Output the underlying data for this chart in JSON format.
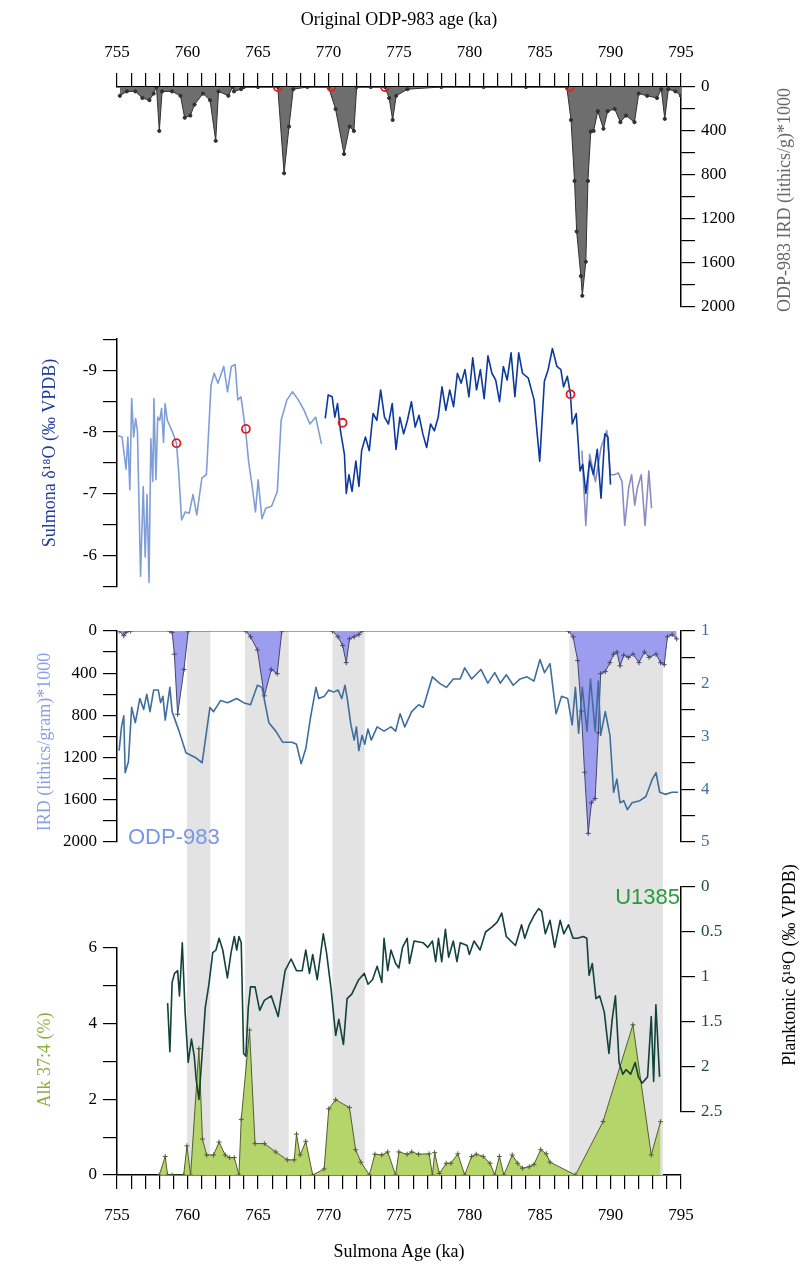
{
  "chart_data": [
    {
      "type": "area",
      "xlabel": "Original ODP-983 age (ka)",
      "ylabel": "ODP-983 IRD (lithics/g)*1000",
      "xlim": [
        755,
        795
      ],
      "xticks": [
        755,
        {
          "value": 756,
          "label": null
        },
        {
          "value": 757,
          "label": null
        },
        {
          "value": 758,
          "label": null
        },
        {
          "value": 759,
          "label": null
        },
        760,
        {
          "value": 761,
          "label": null
        },
        {
          "value": 762,
          "label": null
        },
        {
          "value": 763,
          "label": null
        },
        {
          "value": 764,
          "label": null
        },
        765,
        {
          "value": 766,
          "label": null
        },
        {
          "value": 767,
          "label": null
        },
        {
          "value": 768,
          "label": null
        },
        {
          "value": 769,
          "label": null
        },
        770,
        {
          "value": 771,
          "label": null
        },
        {
          "value": 772,
          "label": null
        },
        {
          "value": 773,
          "label": null
        },
        {
          "value": 774,
          "label": null
        },
        775,
        {
          "value": 776,
          "label": null
        },
        {
          "value": 777,
          "label": null
        },
        {
          "value": 778,
          "label": null
        },
        {
          "value": 779,
          "label": null
        },
        780,
        {
          "value": 781,
          "label": null
        },
        {
          "value": 782,
          "label": null
        },
        {
          "value": 783,
          "label": null
        },
        {
          "value": 784,
          "label": null
        },
        785,
        {
          "value": 786,
          "label": null
        },
        {
          "value": 787,
          "label": null
        },
        {
          "value": 788,
          "label": null
        },
        {
          "value": 789,
          "label": null
        },
        790,
        {
          "value": 791,
          "label": null
        },
        {
          "value": 792,
          "label": null
        },
        {
          "value": 793,
          "label": null
        },
        {
          "value": 794,
          "label": null
        },
        795
      ],
      "ylim": [
        2000,
        0
      ],
      "yticks": [
        0,
        {
          "value": 200,
          "label": null
        },
        400,
        {
          "value": 600,
          "label": null
        },
        800,
        {
          "value": 1000,
          "label": null
        },
        1200,
        {
          "value": 1400,
          "label": null
        },
        1600,
        {
          "value": 1800,
          "label": null
        },
        2000
      ],
      "series": [
        {
          "color": "#6e6e6e",
          "marker": "circle",
          "x": [
            755.2,
            755.7,
            756.3,
            756.8,
            757.3,
            757.6,
            757.8,
            758.0,
            758.2,
            758.9,
            759.5,
            759.8,
            760.2,
            760.5,
            761.1,
            761.6,
            762.0,
            762.2,
            762.9,
            763.2,
            763.3,
            763.8,
            764.0,
            765.0,
            766.4,
            766.85,
            767.2,
            767.5,
            768.5,
            770.0,
            770.5,
            771.1,
            771.5,
            771.8,
            772.0,
            773.0,
            774.0,
            774.3,
            774.55,
            774.8,
            775.6,
            778,
            781,
            784,
            786.9,
            787.2,
            787.45,
            787.6,
            787.9,
            788.0,
            788.25,
            788.4,
            788.6,
            788.8,
            789.1,
            789.5,
            789.8,
            790.3,
            790.7,
            791.1,
            791.7,
            792.0,
            792.6,
            793.3,
            793.6,
            793.85,
            794.1,
            794.6,
            795.0
          ],
          "values": [
            80,
            40,
            40,
            100,
            120,
            60,
            0,
            400,
            40,
            40,
            80,
            280,
            260,
            160,
            60,
            120,
            490,
            40,
            80,
            0,
            40,
            20,
            0,
            0,
            0,
            785,
            360,
            20,
            0,
            0,
            200,
            610,
            360,
            400,
            0,
            0,
            0,
            100,
            300,
            80,
            20,
            0,
            0,
            0,
            0,
            300,
            855,
            1315,
            1720,
            1900,
            1590,
            855,
            405,
            400,
            220,
            380,
            220,
            200,
            320,
            260,
            320,
            60,
            80,
            100,
            20,
            290,
            20,
            40,
            80
          ]
        },
        {
          "type": "scatter",
          "color": "#e02020",
          "marker": "circle",
          "x": [
            766.4,
            770.2,
            774.0,
            787.1
          ],
          "values": [
            0,
            0,
            0,
            0
          ]
        }
      ]
    },
    {
      "type": "line",
      "ylabel": "Sulmona δ¹⁸O (‰ VPDB)",
      "xlim": [
        755,
        795
      ],
      "tick_labels": "y",
      "ylim": [
        -5.5,
        -9.5
      ],
      "yticks": [
        {
          "value": -9.5,
          "label": null
        },
        -9,
        {
          "value": -8.5,
          "label": null
        },
        -8,
        {
          "value": -7.5,
          "label": null
        },
        -7,
        {
          "value": -6.5,
          "label": null
        },
        -6,
        {
          "value": -5.5,
          "label": null
        }
      ],
      "series": [
        {
          "color": "#7f9ed8",
          "x": [
            755.09,
            755.36,
            755.64,
            755.77,
            755.91,
            756.04,
            756.18,
            756.32,
            756.45,
            756.67,
            756.86,
            757.0,
            757.13,
            757.27,
            757.4,
            757.54,
            757.62,
            757.76,
            757.89,
            758.03,
            758.16,
            758.3,
            758.41,
            758.57,
            758.9,
            759.22,
            759.38,
            759.58,
            759.85,
            760.12,
            760.39,
            760.66,
            761.02,
            761.34,
            761.67,
            761.89,
            762.16,
            762.57,
            762.84,
            763.11,
            763.38,
            763.57,
            763.79,
            764.11,
            764.33,
            764.6,
            764.82,
            765.01,
            765.28,
            765.55,
            765.96,
            766.37,
            766.64,
            767.05,
            767.45,
            767.86,
            768.27,
            768.68,
            769.09,
            769.5
          ],
          "values": [
            -7.94,
            -7.92,
            -7.4,
            -7.92,
            -7.07,
            -8.54,
            -7.92,
            -8.22,
            -8.02,
            -5.67,
            -7.12,
            -5.98,
            -6.99,
            -5.57,
            -7.89,
            -7.2,
            -8.54,
            -7.23,
            -8.24,
            -8.19,
            -8.38,
            -7.83,
            -8.46,
            -8.19,
            -8.02,
            -7.82,
            -7.34,
            -6.58,
            -6.71,
            -6.69,
            -6.99,
            -6.66,
            -7.26,
            -7.31,
            -8.76,
            -8.95,
            -8.79,
            -9.06,
            -8.65,
            -9.06,
            -9.09,
            -8.52,
            -8.57,
            -8.05,
            -7.53,
            -7.1,
            -6.71,
            -7.23,
            -6.6,
            -6.77,
            -6.8,
            -7.04,
            -8.19,
            -8.52,
            -8.65,
            -8.52,
            -8.35,
            -8.13,
            -8.24,
            -7.81
          ]
        },
        {
          "color": "#8a8cc4",
          "x": [
            787.97,
            788.25,
            788.52,
            788.93,
            789.33,
            789.74,
            790.0,
            790.28,
            790.55,
            790.82,
            791.01,
            791.29,
            791.5,
            791.72,
            791.91,
            792.18,
            792.45,
            792.72,
            792.91
          ],
          "values": [
            -7.7,
            -6.49,
            -7.64,
            -7.2,
            -7.75,
            -8.02,
            -7.31,
            -7.31,
            -7.34,
            -7.2,
            -6.49,
            -7.1,
            -7.31,
            -6.82,
            -7.1,
            -7.31,
            -6.49,
            -7.37,
            -6.77
          ]
        },
        {
          "color": "#0b3a9c",
          "x": [
            769.77,
            769.98,
            770.26,
            770.45,
            770.64,
            770.85,
            771.13,
            771.26,
            771.45,
            771.67,
            771.94,
            772.16,
            772.35,
            772.62,
            772.89,
            773.16,
            773.43,
            773.7,
            773.97,
            774.25,
            774.52,
            774.79,
            775.06,
            775.33,
            775.6,
            775.88,
            776.15,
            776.42,
            776.69,
            776.96,
            777.24,
            777.51,
            777.78,
            778.05,
            778.32,
            778.6,
            778.87,
            779.14,
            779.41,
            779.68,
            779.96,
            780.23,
            780.5,
            780.77,
            781.04,
            781.31,
            781.59,
            781.86,
            782.13,
            782.4,
            782.67,
            782.95,
            783.22,
            783.49,
            783.76,
            784.17,
            784.58,
            784.98,
            785.31,
            785.58,
            785.88,
            786.2,
            786.48,
            786.67,
            786.94,
            787.16,
            787.29,
            787.57,
            787.84,
            788.03,
            788.25,
            788.52,
            788.79,
            789.06,
            789.33,
            789.6,
            789.82,
            790.0
          ],
          "values": [
            -8.22,
            -8.6,
            -8.57,
            -8.24,
            -8.46,
            -8.02,
            -7.64,
            -7.01,
            -7.31,
            -7.04,
            -7.53,
            -7.12,
            -7.7,
            -7.92,
            -7.7,
            -8.3,
            -8.19,
            -8.68,
            -8.24,
            -8.13,
            -8.46,
            -7.72,
            -8.24,
            -7.97,
            -8.19,
            -8.49,
            -8.08,
            -8.27,
            -7.97,
            -7.75,
            -8.13,
            -8.02,
            -8.24,
            -8.73,
            -8.35,
            -8.68,
            -8.41,
            -8.95,
            -8.79,
            -9.01,
            -8.57,
            -9.2,
            -8.68,
            -9.01,
            -8.54,
            -9.23,
            -8.95,
            -8.84,
            -8.49,
            -9.06,
            -8.84,
            -9.28,
            -8.57,
            -9.28,
            -8.95,
            -8.87,
            -8.52,
            -7.53,
            -8.82,
            -9.01,
            -9.35,
            -9.06,
            -9.01,
            -8.73,
            -8.9,
            -8.61,
            -8.13,
            -8.3,
            -7.37,
            -7.48,
            -7.01,
            -7.53,
            -7.31,
            -7.72,
            -6.93,
            -7.97,
            -7.92,
            -7.15
          ]
        },
        {
          "type": "scatter",
          "color": "#e02020",
          "marker": "circle",
          "x": [
            759.22,
            764.14,
            771.0,
            787.16
          ],
          "values": [
            -7.82,
            -8.05,
            -8.15,
            -8.61
          ]
        }
      ]
    },
    {
      "type": "area",
      "ylabel": "IRD (lithics/gram)*1000",
      "xlim": [
        755,
        795
      ],
      "tick_labels": "y",
      "ylim": [
        2000,
        0
      ],
      "yticks": [
        0,
        {
          "value": 200,
          "label": null
        },
        400,
        {
          "value": 600,
          "label": null
        },
        800,
        {
          "value": 1000,
          "label": null
        },
        1200,
        {
          "value": 1400,
          "label": null
        },
        1600,
        {
          "value": 1800,
          "label": null
        },
        2000
      ],
      "y2lim": [
        5,
        1
      ],
      "y2ticks": [
        1,
        {
          "value": 1.5,
          "label": null
        },
        2,
        {
          "value": 2.5,
          "label": null
        },
        3,
        {
          "value": 3.5,
          "label": null
        },
        4,
        {
          "value": 4.5,
          "label": null
        },
        5
      ],
      "annotations": [
        "ODP-983"
      ],
      "bands": [
        {
          "axis": "x",
          "from": 759.96,
          "to": 761.62,
          "color": "#e3e3e3"
        },
        {
          "axis": "x",
          "from": 764.08,
          "to": 767.18,
          "color": "#e3e3e3"
        },
        {
          "axis": "x",
          "from": 770.28,
          "to": 772.57,
          "color": "#e3e3e3"
        },
        {
          "axis": "x",
          "from": 787.08,
          "to": 793.72,
          "color": "#e3e3e3"
        }
      ],
      "series": [
        {
          "color": "#9d9df0",
          "marker": "cross",
          "x": [
            755.15,
            755.48,
            755.64,
            755.97,
            758.75,
            758.91,
            759.07,
            759.3,
            759.75,
            760.05,
            764.14,
            764.47,
            764.96,
            765.45,
            765.94,
            766.36,
            766.69,
            770.28,
            770.67,
            771.0,
            771.26,
            771.49,
            771.82,
            772.15,
            772.37,
            787.02,
            787.35,
            787.67,
            787.93,
            788.16,
            788.42,
            788.65,
            788.91,
            789.14,
            789.3,
            789.63,
            789.96,
            790.22,
            790.45,
            790.68,
            790.94,
            791.27,
            791.6,
            792.02,
            792.41,
            792.74,
            793.23,
            793.55,
            793.81,
            794.04,
            794.37,
            794.69
          ],
          "values": [
            0,
            45,
            12,
            0,
            0,
            12,
            220,
            790,
            365,
            0,
            0,
            55,
            180,
            615,
            365,
            405,
            0,
            0,
            55,
            137,
            300,
            75,
            55,
            35,
            0,
            0,
            55,
            280,
            760,
            1340,
            1920,
            1630,
            1590,
            965,
            405,
            385,
            300,
            220,
            200,
            330,
            230,
            250,
            220,
            300,
            200,
            250,
            220,
            300,
            320,
            55,
            35,
            75
          ]
        },
        {
          "type": "line",
          "color": "#3f6e9e",
          "axis": "y2",
          "x": [
            755.15,
            755.32,
            755.48,
            755.58,
            755.81,
            756.04,
            756.3,
            756.62,
            756.89,
            757.11,
            757.34,
            757.6,
            757.93,
            758.09,
            758.26,
            758.42,
            758.75,
            758.91,
            759.4,
            759.89,
            760.55,
            761.04,
            761.59,
            761.85,
            762.34,
            762.84,
            763.49,
            763.98,
            764.47,
            764.96,
            765.28,
            765.77,
            766.26,
            766.75,
            767.41,
            767.73,
            768.06,
            768.39,
            768.72,
            769.11,
            769.31,
            769.7,
            770.02,
            770.35,
            770.68,
            770.94,
            771.17,
            771.33,
            771.59,
            771.82,
            771.98,
            772.15,
            772.38,
            772.57,
            772.8,
            773.03,
            773.45,
            773.94,
            774.43,
            774.76,
            775.08,
            775.41,
            775.9,
            776.39,
            776.72,
            777.37,
            777.86,
            778.36,
            778.85,
            779.34,
            779.66,
            780.15,
            780.81,
            781.3,
            781.79,
            782.18,
            782.61,
            783.1,
            783.59,
            784.08,
            784.57,
            785.0,
            785.32,
            785.71,
            786.14,
            786.53,
            786.96,
            787.28,
            787.51,
            787.74,
            788.0,
            788.33,
            788.58,
            788.91,
            789.14,
            789.3,
            789.63,
            789.96,
            790.22,
            790.45,
            790.68,
            790.94,
            791.2,
            791.53,
            792.08,
            792.51,
            792.97,
            793.23,
            793.49,
            793.88,
            794.37,
            794.79
          ],
          "values": [
            3.27,
            2.82,
            2.61,
            3.69,
            3.48,
            2.45,
            2.74,
            2.28,
            2.49,
            2.2,
            2.53,
            2.12,
            2.12,
            2.36,
            2.24,
            2.69,
            2.07,
            2.53,
            2.9,
            3.31,
            3.4,
            3.5,
            2.45,
            2.53,
            2.32,
            2.36,
            2.28,
            2.36,
            2.4,
            2.03,
            2.07,
            2.74,
            2.9,
            3.11,
            3.11,
            3.15,
            3.52,
            3.23,
            2.65,
            2.07,
            2.28,
            2.24,
            2.12,
            2.16,
            2.12,
            2.28,
            2.03,
            2.28,
            2.78,
            3.07,
            2.82,
            3.27,
            2.98,
            3.15,
            2.86,
            3.07,
            2.82,
            2.9,
            2.82,
            2.9,
            2.57,
            2.82,
            2.53,
            2.4,
            2.45,
            1.87,
            1.99,
            2.07,
            1.91,
            1.91,
            1.7,
            1.91,
            1.73,
            1.99,
            1.79,
            1.99,
            1.83,
            2.03,
            1.91,
            1.87,
            1.95,
            1.54,
            1.79,
            1.62,
            2.57,
            2.24,
            2.28,
            2.78,
            2.07,
            2.94,
            2.07,
            2.9,
            1.91,
            2.9,
            1.95,
            2.98,
            2.53,
            2.98,
            4.06,
            3.81,
            4.26,
            4.22,
            4.39,
            4.26,
            4.22,
            4.14,
            3.81,
            3.69,
            4.06,
            4.1,
            4.06,
            4.06
          ]
        }
      ]
    },
    {
      "type": "area",
      "xlabel": "Sulmona Age (ka)",
      "ylabel": "Alk 37:4 (%)",
      "y2label": "Planktonic δ¹⁸O (‰ VPDB)",
      "xlim": [
        755,
        795
      ],
      "xticks": [
        755,
        {
          "value": 756,
          "label": null
        },
        {
          "value": 757,
          "label": null
        },
        {
          "value": 758,
          "label": null
        },
        {
          "value": 759,
          "label": null
        },
        760,
        {
          "value": 761,
          "label": null
        },
        {
          "value": 762,
          "label": null
        },
        {
          "value": 763,
          "label": null
        },
        {
          "value": 764,
          "label": null
        },
        765,
        {
          "value": 766,
          "label": null
        },
        {
          "value": 767,
          "label": null
        },
        {
          "value": 768,
          "label": null
        },
        {
          "value": 769,
          "label": null
        },
        770,
        {
          "value": 771,
          "label": null
        },
        {
          "value": 772,
          "label": null
        },
        {
          "value": 773,
          "label": null
        },
        {
          "value": 774,
          "label": null
        },
        775,
        {
          "value": 776,
          "label": null
        },
        {
          "value": 777,
          "label": null
        },
        {
          "value": 778,
          "label": null
        },
        {
          "value": 779,
          "label": null
        },
        780,
        {
          "value": 781,
          "label": null
        },
        {
          "value": 782,
          "label": null
        },
        {
          "value": 783,
          "label": null
        },
        {
          "value": 784,
          "label": null
        },
        785,
        {
          "value": 786,
          "label": null
        },
        {
          "value": 787,
          "label": null
        },
        {
          "value": 788,
          "label": null
        },
        {
          "value": 789,
          "label": null
        },
        790,
        {
          "value": 791,
          "label": null
        },
        {
          "value": 792,
          "label": null
        },
        {
          "value": 793,
          "label": null
        },
        {
          "value": 794,
          "label": null
        },
        795
      ],
      "ylim": [
        0,
        6
      ],
      "yticks": [
        0,
        {
          "value": 1,
          "label": null
        },
        2,
        {
          "value": 3,
          "label": null
        },
        4,
        {
          "value": 5,
          "label": null
        },
        6
      ],
      "y2lim": [
        2.5,
        0
      ],
      "y2ticks": [
        0,
        0.5,
        1,
        1.5,
        2,
        2.5
      ],
      "annotations": [
        "U1385"
      ],
      "bands": [
        {
          "axis": "x",
          "from": 759.96,
          "to": 761.62,
          "color": "#e3e3e3"
        },
        {
          "axis": "x",
          "from": 764.08,
          "to": 767.18,
          "color": "#e3e3e3"
        },
        {
          "axis": "x",
          "from": 770.28,
          "to": 772.57,
          "color": "#e3e3e3"
        },
        {
          "axis": "x",
          "from": 787.08,
          "to": 793.72,
          "color": "#e3e3e3"
        }
      ],
      "series": [
        {
          "color": "#b5d56a",
          "marker": "cross",
          "x": [
            758.0,
            758.42,
            758.59,
            758.91,
            759.73,
            759.96,
            760.22,
            760.81,
            761.06,
            761.36,
            761.85,
            762.24,
            762.67,
            762.99,
            763.32,
            763.65,
            763.81,
            764.4,
            764.79,
            765.45,
            766.26,
            767.08,
            767.57,
            767.73,
            767.99,
            768.39,
            768.88,
            769.69,
            770.02,
            770.51,
            771.49,
            771.92,
            772.3,
            772.9,
            773.29,
            773.78,
            774.2,
            774.76,
            774.99,
            775.58,
            775.9,
            776.39,
            777.14,
            777.37,
            777.53,
            777.86,
            778.35,
            778.68,
            779.17,
            779.66,
            780.15,
            780.48,
            780.97,
            781.46,
            781.79,
            782.12,
            782.44,
            783.03,
            783.42,
            783.75,
            784.24,
            784.57,
            785.05,
            785.45,
            785.71,
            787.51,
            789.47,
            791.59,
            792.89,
            793.55
          ],
          "values": [
            0,
            0.49,
            0,
            0,
            0,
            0.77,
            0,
            3.34,
            0.95,
            0.53,
            0.53,
            0.87,
            0.53,
            0.46,
            0.46,
            0,
            1.47,
            3.83,
            0.83,
            0.83,
            0.61,
            0.4,
            0.4,
            1.08,
            0.53,
            0.89,
            0,
            0.16,
            1.75,
            1.99,
            1.78,
            0.67,
            0.34,
            0,
            0.55,
            0.53,
            0.61,
            0,
            0.61,
            0.55,
            0.61,
            0.55,
            0.56,
            0,
            0.59,
            0.04,
            0.31,
            0.31,
            0.56,
            0,
            0.49,
            0.55,
            0.49,
            0.31,
            0,
            0.49,
            0,
            0.53,
            0.31,
            0.18,
            0.22,
            0.28,
            0.67,
            0.56,
            0.34,
            0,
            1.41,
            3.97,
            0.53,
            1.41
          ]
        },
        {
          "type": "line",
          "color": "#12423a",
          "axis": "y2",
          "x": [
            758.59,
            758.75,
            758.91,
            759.08,
            759.3,
            759.43,
            759.63,
            759.83,
            760.05,
            760.28,
            760.48,
            760.61,
            760.81,
            761.04,
            761.26,
            761.52,
            761.79,
            762.02,
            762.24,
            762.5,
            762.83,
            763.09,
            763.32,
            763.49,
            763.65,
            763.81,
            763.98,
            764.14,
            764.31,
            764.47,
            764.79,
            765.12,
            765.45,
            765.94,
            766.43,
            766.92,
            767.35,
            767.73,
            768.13,
            768.39,
            768.65,
            768.88,
            769.2,
            769.63,
            769.86,
            770.18,
            770.51,
            770.73,
            771.06,
            771.32,
            771.65,
            772.14,
            772.54,
            772.8,
            773.12,
            773.45,
            773.78,
            773.94,
            774.2,
            774.43,
            774.76,
            774.99,
            775.25,
            775.58,
            775.74,
            776.07,
            776.72,
            777.05,
            777.37,
            777.6,
            777.8,
            778.03,
            778.29,
            778.52,
            778.85,
            779.11,
            779.34,
            779.83,
            779.99,
            780.32,
            780.75,
            781.14,
            781.63,
            781.96,
            782.29,
            782.61,
            782.93,
            783.26,
            783.69,
            783.92,
            784.24,
            784.57,
            784.9,
            785.12,
            785.38,
            785.71,
            786.04,
            786.43,
            786.69,
            787.02,
            787.35,
            787.67,
            788.06,
            788.32,
            788.48,
            788.71,
            788.97,
            789.23,
            789.56,
            789.89,
            790.12,
            790.35,
            790.61,
            790.87,
            791.1,
            791.43,
            791.75,
            791.98,
            792.24,
            792.63,
            792.89,
            793.06,
            793.22,
            793.48
          ],
          "values": [
            1.29,
            1.83,
            1.06,
            0.96,
            0.93,
            1.21,
            0.62,
            1.39,
            1.95,
            1.69,
            1.88,
            2.13,
            2.36,
            1.85,
            1.34,
            1.08,
            0.73,
            0.7,
            0.57,
            0.7,
            1.01,
            0.73,
            0.55,
            0.7,
            0.55,
            0.62,
            1.85,
            1.88,
            1.34,
            1.11,
            1.11,
            1.37,
            1.26,
            1.21,
            1.44,
            0.93,
            0.8,
            0.93,
            0.93,
            0.7,
            0.96,
            0.75,
            1.03,
            0.52,
            0.73,
            1.13,
            1.65,
            1.47,
            1.75,
            1.24,
            1.19,
            1.03,
            0.96,
            1.08,
            1.03,
            0.88,
            1.06,
            0.57,
            0.93,
            0.7,
            0.85,
            0.9,
            0.67,
            0.57,
            0.85,
            0.6,
            0.62,
            0.67,
            0.6,
            0.83,
            0.57,
            0.83,
            0.47,
            0.78,
            0.6,
            0.83,
            0.62,
            0.65,
            0.75,
            0.6,
            0.7,
            0.5,
            0.44,
            0.39,
            0.29,
            0.55,
            0.6,
            0.65,
            0.42,
            0.57,
            0.42,
            0.32,
            0.24,
            0.27,
            0.52,
            0.37,
            0.67,
            0.37,
            0.52,
            0.42,
            0.57,
            0.57,
            0.55,
            0.57,
            0.98,
            0.85,
            1.24,
            1.21,
            1.39,
            1.85,
            1.47,
            1.21,
            1.95,
            2.08,
            2.03,
            2.08,
            1.95,
            2.11,
            2.18,
            2.11,
            1.44,
            2.16,
            1.31,
            2.11
          ]
        }
      ]
    }
  ]
}
